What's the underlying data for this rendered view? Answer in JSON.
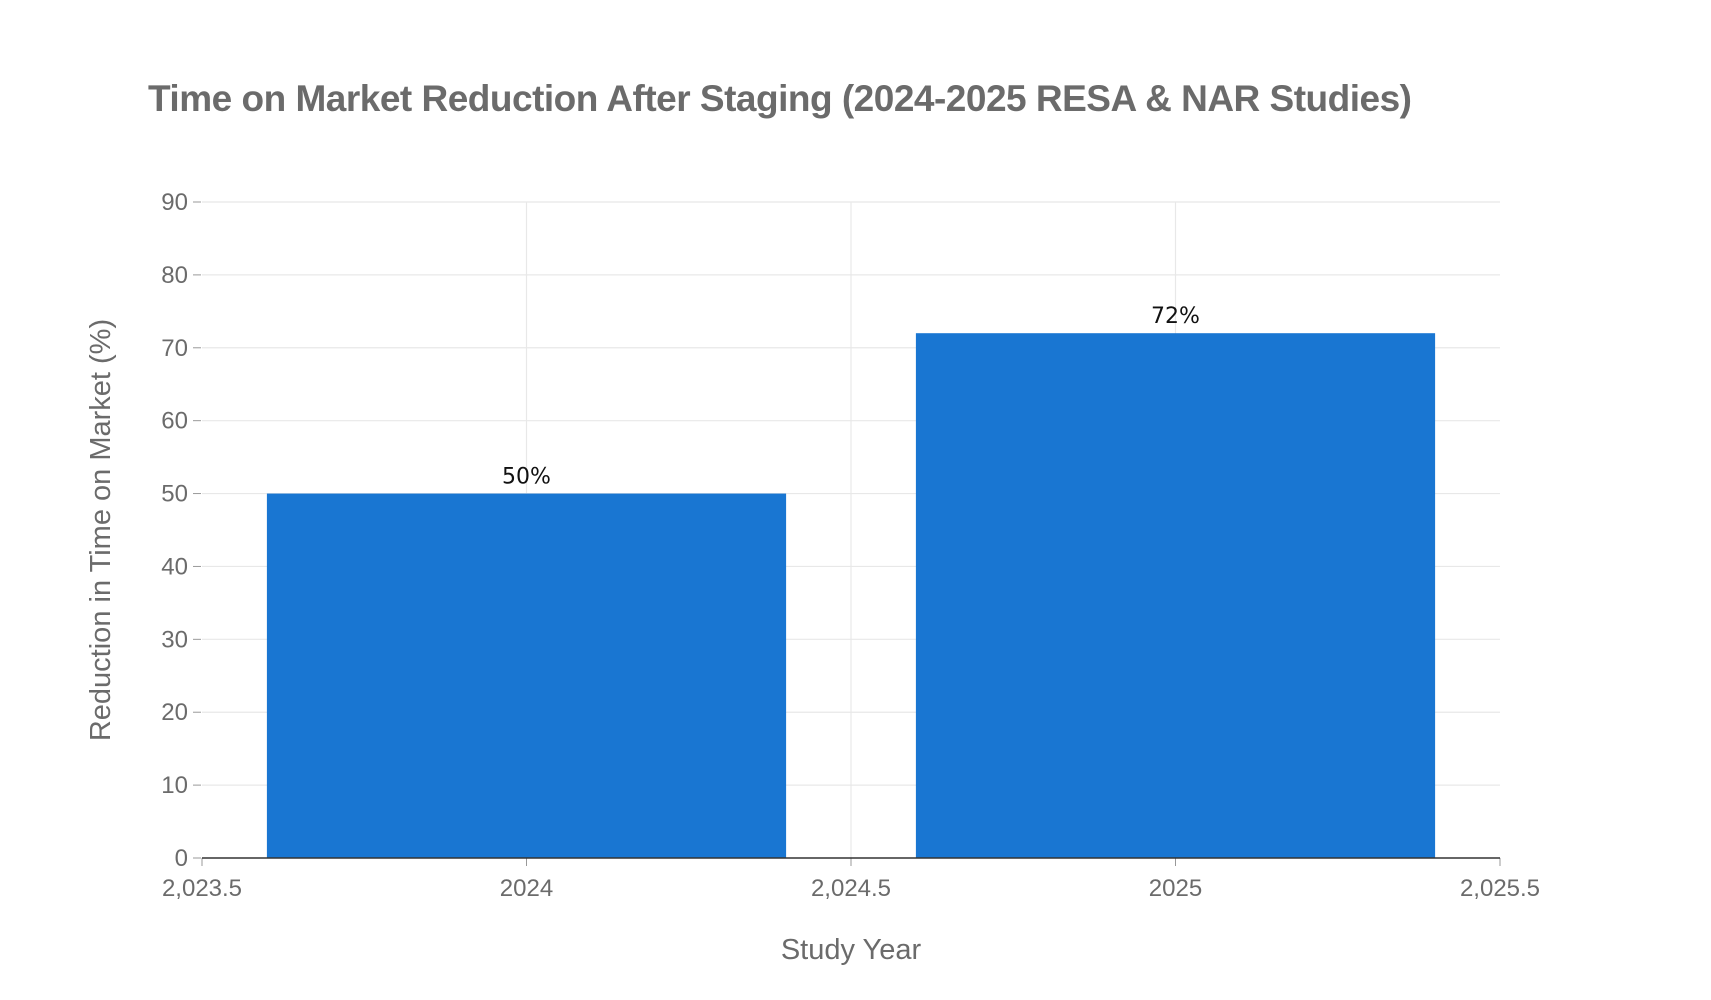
{
  "chart_data": {
    "type": "bar",
    "title": "Time on Market Reduction After Staging (2024-2025 RESA & NAR Studies)",
    "xlabel": "Study Year",
    "ylabel": "Reduction in Time on Market (%)",
    "x": [
      2024,
      2025
    ],
    "values": [
      50,
      72
    ],
    "data_labels": [
      "50%",
      "72%"
    ],
    "xlim": [
      2023.5,
      2025.5
    ],
    "ylim": [
      0,
      90
    ],
    "x_ticks": [
      2023.5,
      2024,
      2024.5,
      2025,
      2025.5
    ],
    "x_tick_labels": [
      "2,023.5",
      "2024",
      "2,024.5",
      "2025",
      "2,025.5"
    ],
    "y_ticks": [
      0,
      10,
      20,
      30,
      40,
      50,
      60,
      70,
      80,
      90
    ],
    "y_tick_labels": [
      "0",
      "10",
      "20",
      "30",
      "40",
      "50",
      "60",
      "70",
      "80",
      "90"
    ],
    "bar_width": 0.8,
    "grid": true,
    "colors": {
      "bar": "#1976D2",
      "grid": "#e8e8e8",
      "axis": "#333333",
      "text": "#6b6b6b"
    }
  }
}
